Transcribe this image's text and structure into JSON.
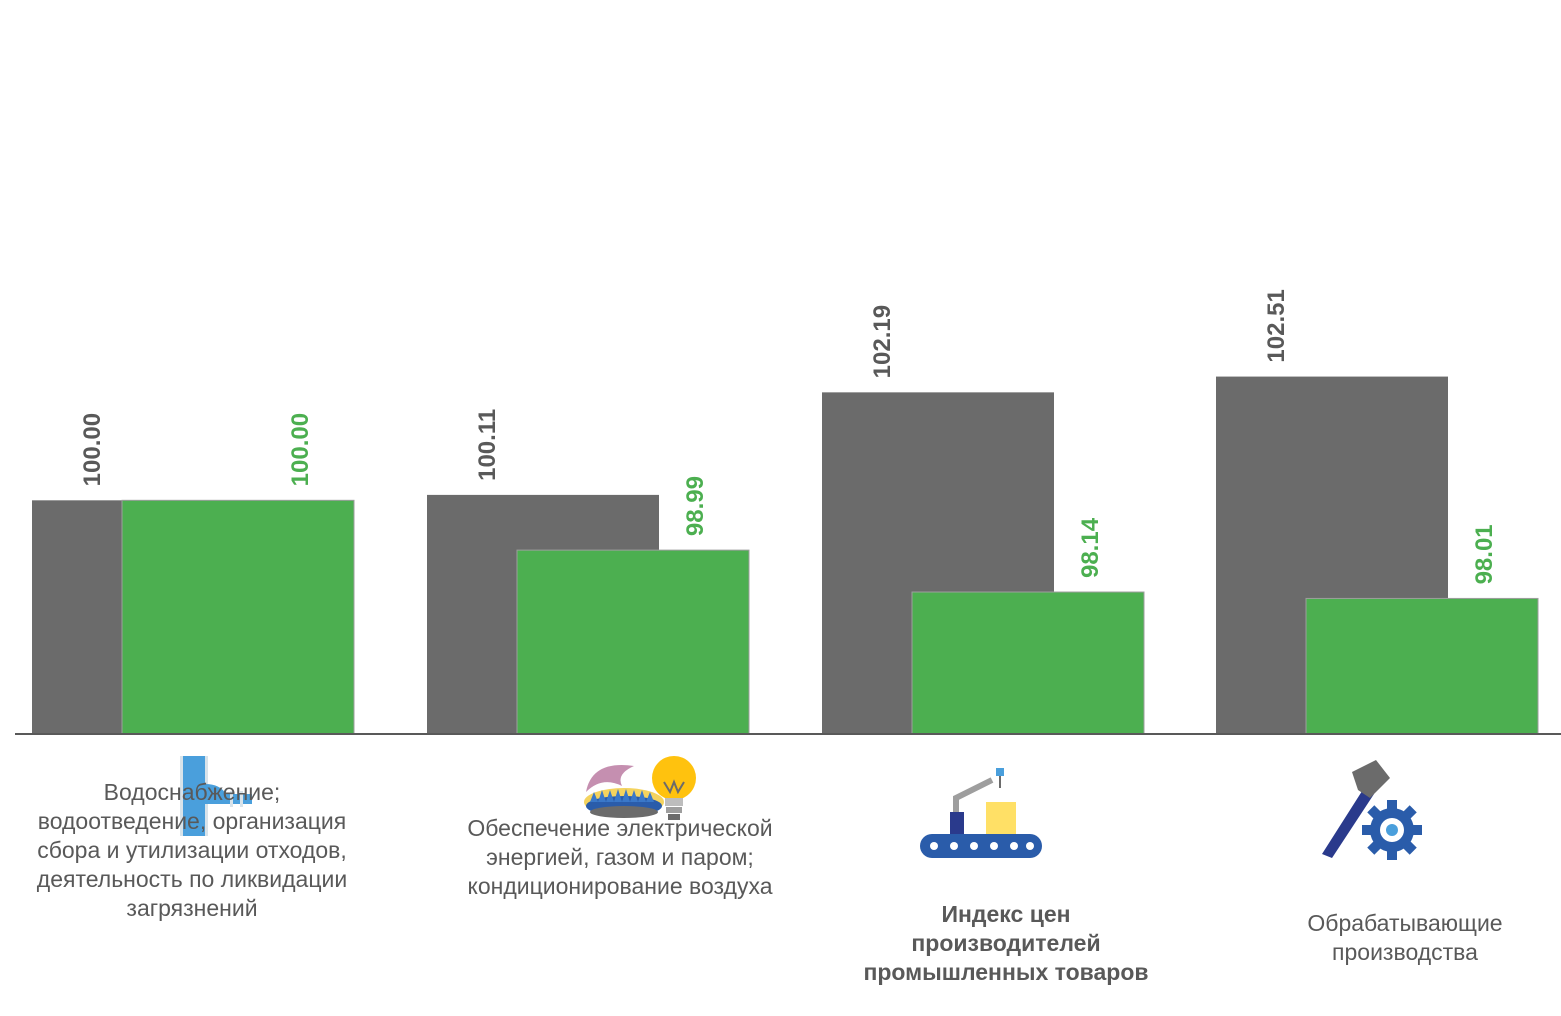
{
  "chart_data": {
    "type": "bar",
    "categories": [
      "Водоснабжение;\nводоотведение, организация\nсбора и утилизации отходов,\nдеятельность по ликвидации\nзагрязнений",
      "Обеспечение электрической\nэнергией, газом и паром;\nкондиционирование воздуха",
      "Индекс цен\nпроизводителей\nпромышленных товаров",
      "Обрабатывающие\nпроизводства"
    ],
    "category_icons": [
      "pipe-icon",
      "gas-flame-lightbulb-icon",
      "conveyor-robot-icon",
      "hammer-gear-icon"
    ],
    "series": [
      {
        "values": [
          100.0,
          100.11,
          102.19,
          102.51
        ],
        "color": "#6b6b6b"
      },
      {
        "values": [
          100.0,
          98.99,
          98.14,
          98.01
        ],
        "color": "#4caf50"
      }
    ],
    "data_labels": [
      [
        "100.00",
        "100.11",
        "102.19",
        "102.51"
      ],
      [
        "100.00",
        "98.99",
        "98.14",
        "98.01"
      ]
    ],
    "label_colors": [
      "#595959",
      "#4caf50"
    ],
    "bold_category_index": 2,
    "title": "",
    "xlabel": "",
    "ylabel": "",
    "ylim": [
      95.26,
      103.8
    ],
    "grid": false,
    "legend": "none"
  }
}
